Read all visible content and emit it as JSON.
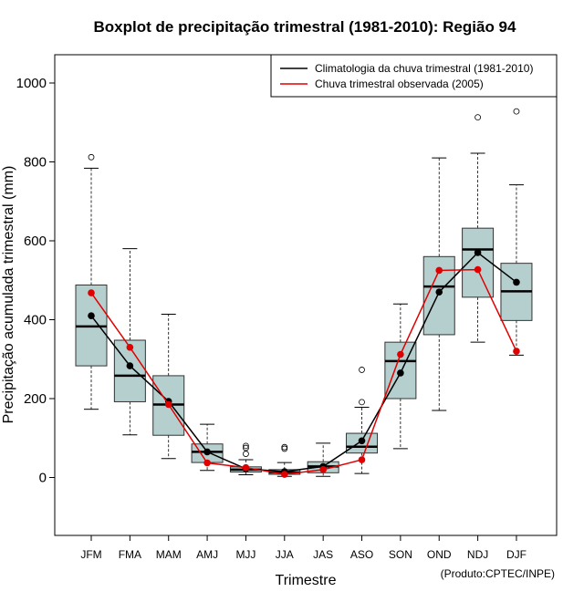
{
  "chart_data": {
    "type": "boxplot",
    "title": "Boxplot de precipitação trimestral (1981-2010): Região 94",
    "xlabel": "Trimestre",
    "ylabel": "Precipitação acumulada trimestral (mm)",
    "ylim": [
      -150,
      1070
    ],
    "yticks": [
      0,
      200,
      400,
      600,
      800,
      1000
    ],
    "categories": [
      "JFM",
      "FMA",
      "MAM",
      "AMJ",
      "MJJ",
      "JJA",
      "JAS",
      "ASO",
      "SON",
      "OND",
      "NDJ",
      "DJF"
    ],
    "boxes": [
      {
        "whisker_low": 173,
        "q1": 283,
        "median": 383,
        "q3": 488,
        "whisker_high": 784,
        "outliers": [
          812
        ]
      },
      {
        "whisker_low": 108,
        "q1": 192,
        "median": 258,
        "q3": 348,
        "whisker_high": 580,
        "outliers": []
      },
      {
        "whisker_low": 48,
        "q1": 107,
        "median": 185,
        "q3": 258,
        "whisker_high": 414,
        "outliers": []
      },
      {
        "whisker_low": 18,
        "q1": 38,
        "median": 65,
        "q3": 85,
        "whisker_high": 135,
        "outliers": []
      },
      {
        "whisker_low": 7,
        "q1": 14,
        "median": 20,
        "q3": 27,
        "whisker_high": 45,
        "outliers": [
          60,
          75,
          80
        ]
      },
      {
        "whisker_low": 3,
        "q1": 8,
        "median": 13,
        "q3": 20,
        "whisker_high": 38,
        "outliers": [
          73,
          77
        ]
      },
      {
        "whisker_low": 3,
        "q1": 12,
        "median": 28,
        "q3": 40,
        "whisker_high": 87,
        "outliers": []
      },
      {
        "whisker_low": 10,
        "q1": 62,
        "median": 78,
        "q3": 112,
        "whisker_high": 178,
        "outliers": [
          191,
          273
        ]
      },
      {
        "whisker_low": 73,
        "q1": 200,
        "median": 295,
        "q3": 343,
        "whisker_high": 440,
        "outliers": []
      },
      {
        "whisker_low": 170,
        "q1": 362,
        "median": 484,
        "q3": 560,
        "whisker_high": 810,
        "outliers": []
      },
      {
        "whisker_low": 343,
        "q1": 457,
        "median": 578,
        "q3": 632,
        "whisker_high": 822,
        "outliers": [
          913
        ]
      },
      {
        "whisker_low": 310,
        "q1": 398,
        "median": 472,
        "q3": 543,
        "whisker_high": 742,
        "outliers": [
          928
        ]
      }
    ],
    "series": [
      {
        "name": "Climatologia da chuva trimestral (1981-2010)",
        "color": "#000000",
        "values": [
          410,
          283,
          193,
          65,
          22,
          15,
          28,
          93,
          265,
          470,
          570,
          495
        ]
      },
      {
        "name": "Chuva trimestral observada (2005)",
        "color": "#e00000",
        "values": [
          468,
          330,
          185,
          37,
          25,
          8,
          20,
          45,
          312,
          525,
          527,
          320
        ]
      }
    ],
    "legend_position": "top-right",
    "box_fill": "#b5cfcf",
    "credit": "(Produto:CPTEC/INPE)"
  }
}
